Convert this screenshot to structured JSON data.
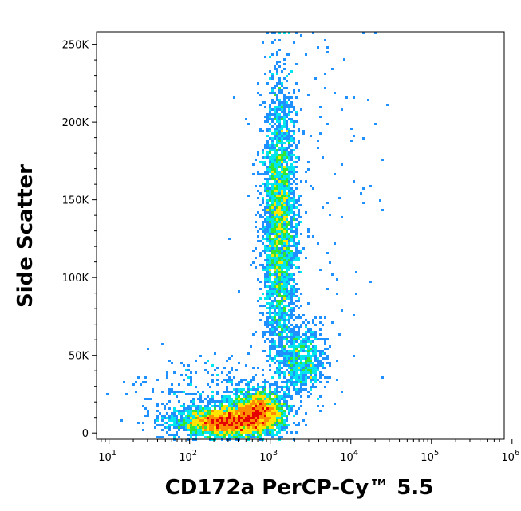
{
  "chart_data": {
    "type": "scatter",
    "title": "",
    "xlabel": "CD172a PerCP-Cy™ 5.5",
    "ylabel": "Side Scatter",
    "x_scale": "log",
    "xlim": [
      7,
      800000
    ],
    "ylim": [
      -4000,
      258000
    ],
    "x_ticks": [
      {
        "base": "10",
        "exp": "1",
        "value": 10
      },
      {
        "base": "10",
        "exp": "2",
        "value": 100
      },
      {
        "base": "10",
        "exp": "3",
        "value": 1000
      },
      {
        "base": "10",
        "exp": "4",
        "value": 10000
      },
      {
        "base": "10",
        "exp": "5",
        "value": 100000
      },
      {
        "base": "10",
        "exp": "6",
        "value": 1000000
      }
    ],
    "y_ticks": [
      {
        "label": "0",
        "value": 0
      },
      {
        "label": "50K",
        "value": 50000
      },
      {
        "label": "100K",
        "value": 100000
      },
      {
        "label": "150K",
        "value": 150000
      },
      {
        "label": "200K",
        "value": 200000
      },
      {
        "label": "250K",
        "value": 250000
      }
    ],
    "grid": false,
    "legend": "none",
    "color_scale": [
      "#0000cd",
      "#1e90ff",
      "#00e5ee",
      "#32e632",
      "#ffe600",
      "#ff8c00",
      "#e60000"
    ],
    "populations": [
      {
        "x_log_center": 2.45,
        "x_log_sd": 0.28,
        "y_center": 7000,
        "y_sd": 4500,
        "weight": 3200
      },
      {
        "x_log_center": 2.85,
        "x_log_sd": 0.17,
        "y_center": 14000,
        "y_sd": 6500,
        "weight": 2400
      },
      {
        "x_log_center": 3.12,
        "x_log_sd": 0.11,
        "y_center": 135000,
        "y_sd": 42000,
        "weight": 3000
      },
      {
        "x_log_center": 3.4,
        "x_log_sd": 0.15,
        "y_center": 47000,
        "y_sd": 12000,
        "weight": 700
      },
      {
        "x_log_center": 2.2,
        "x_log_sd": 0.45,
        "y_center": 22000,
        "y_sd": 14000,
        "weight": 350
      },
      {
        "x_log_center": 3.5,
        "x_log_sd": 0.45,
        "y_center": 160000,
        "y_sd": 55000,
        "weight": 120
      }
    ]
  }
}
